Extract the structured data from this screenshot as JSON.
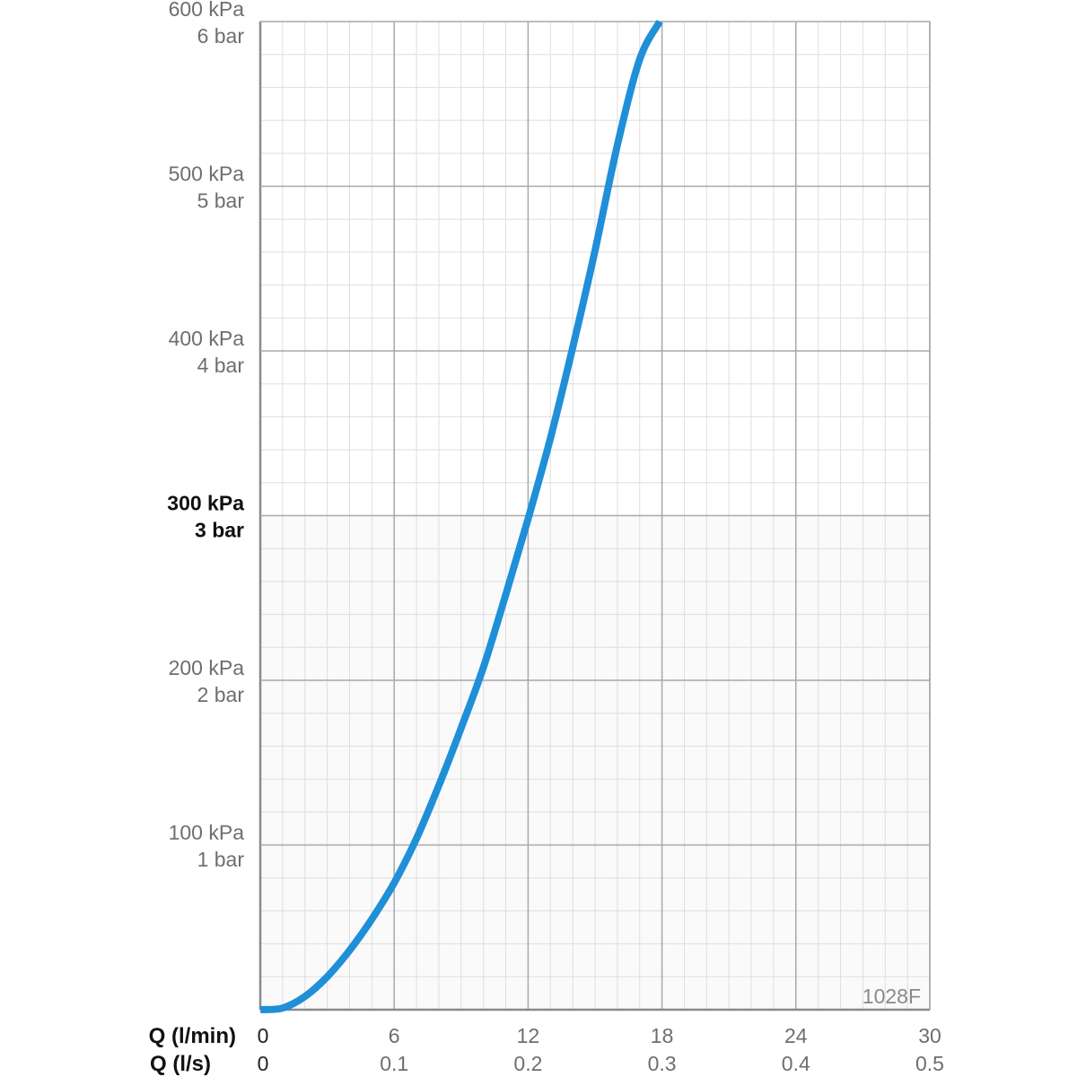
{
  "chart_data": {
    "type": "line",
    "code_label": "1028F",
    "x_axis_titles": [
      "Q (l/min)",
      "Q (l/s)"
    ],
    "x_ticks_lmin": [
      "0",
      "6",
      "12",
      "18",
      "24",
      "30"
    ],
    "x_ticks_ls": [
      "0",
      "0.1",
      "0.2",
      "0.3",
      "0.4",
      "0.5"
    ],
    "xlim": [
      0,
      30
    ],
    "ylim": [
      0,
      600
    ],
    "y_ticks": [
      {
        "value": 100,
        "kpa": "100 kPa",
        "bar": "1 bar",
        "bold": false
      },
      {
        "value": 200,
        "kpa": "200 kPa",
        "bar": "2 bar",
        "bold": false
      },
      {
        "value": 300,
        "kpa": "300 kPa",
        "bar": "3 bar",
        "bold": true
      },
      {
        "value": 400,
        "kpa": "400 kPa",
        "bar": "4 bar",
        "bold": false
      },
      {
        "value": 500,
        "kpa": "500 kPa",
        "bar": "5 bar",
        "bold": false
      },
      {
        "value": 600,
        "kpa": "600 kPa",
        "bar": "6 bar",
        "bold": false
      }
    ],
    "grid": true,
    "series": [
      {
        "color": "#1f8fd8",
        "points": [
          {
            "x": 0,
            "y": 0
          },
          {
            "x": 1,
            "y": 1
          },
          {
            "x": 2,
            "y": 8
          },
          {
            "x": 3,
            "y": 20
          },
          {
            "x": 4,
            "y": 36
          },
          {
            "x": 5,
            "y": 55
          },
          {
            "x": 6,
            "y": 77
          },
          {
            "x": 7,
            "y": 104
          },
          {
            "x": 8,
            "y": 136
          },
          {
            "x": 9,
            "y": 171
          },
          {
            "x": 10,
            "y": 208
          },
          {
            "x": 11,
            "y": 252
          },
          {
            "x": 12,
            "y": 298
          },
          {
            "x": 13,
            "y": 347
          },
          {
            "x": 14,
            "y": 402
          },
          {
            "x": 15,
            "y": 461
          },
          {
            "x": 16,
            "y": 525
          },
          {
            "x": 17,
            "y": 577
          },
          {
            "x": 17.9,
            "y": 600
          }
        ]
      }
    ]
  }
}
